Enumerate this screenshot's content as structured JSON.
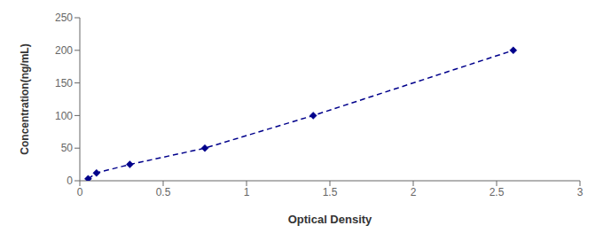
{
  "chart_data": {
    "type": "line",
    "x": [
      0.05,
      0.1,
      0.3,
      0.75,
      1.4,
      2.6
    ],
    "values": [
      3,
      12,
      25,
      50,
      100,
      200
    ],
    "color": "#00008B",
    "marker": "diamond",
    "line_style": "dashed",
    "xlabel": "Optical Density",
    "ylabel": "Concentration(ng/mL)",
    "xlim": [
      0,
      3
    ],
    "ylim": [
      0,
      250
    ],
    "xticks": [
      0,
      0.5,
      1,
      1.5,
      2,
      2.5,
      3
    ],
    "yticks": [
      0,
      50,
      100,
      150,
      200,
      250
    ]
  }
}
